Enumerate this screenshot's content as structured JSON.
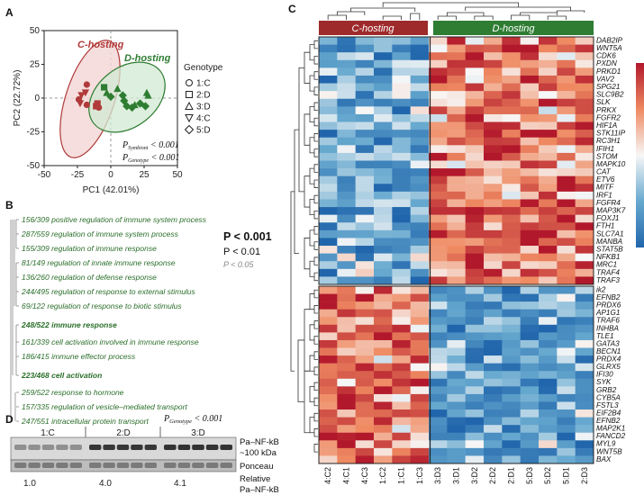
{
  "panel_labels": [
    "A",
    "B",
    "C",
    "D"
  ],
  "panelA": {
    "xlabel": "PC1 (42.01%)",
    "ylabel": "PC2 (22.72%)",
    "xticks": [
      -50,
      -25,
      0,
      25,
      50
    ],
    "yticks": [
      -50,
      -25,
      0,
      25,
      50
    ],
    "c_label": "C-hosting",
    "d_label": "D-hosting",
    "legend_title": "Genotype",
    "legend_items": [
      "1:C",
      "2:D",
      "3:D",
      "4:C",
      "5:D"
    ],
    "stat1": "P",
    "stat1_sub": "Symbiont",
    "stat1_val": " < 0.001",
    "stat2": "P",
    "stat2_sub": "Genotype",
    "stat2_val": " < 0.001",
    "colors": {
      "c": "#b03a3a",
      "d": "#2e7d32",
      "c_fill": "#f3d6d4",
      "d_fill": "#d2ead3"
    }
  },
  "chart_data": [
    {
      "type": "scatter",
      "title": "",
      "xlabel": "PC1 (42.01%)",
      "ylabel": "PC2 (22.72%)",
      "xlim": [
        -50,
        50
      ],
      "ylim": [
        -50,
        50
      ],
      "series": [
        {
          "name": "C-hosting",
          "points": [
            [
              -18,
              10
            ],
            [
              -19,
              4
            ],
            [
              -22,
              2
            ],
            [
              -24,
              -1
            ],
            [
              -23,
              -4
            ],
            [
              -18,
              -5
            ],
            [
              -11,
              -6
            ],
            [
              -10,
              -4
            ],
            [
              -9,
              -7
            ]
          ]
        },
        {
          "name": "D-hosting",
          "points": [
            [
              -5,
              8
            ],
            [
              -3,
              4
            ],
            [
              0,
              1
            ],
            [
              5,
              7
            ],
            [
              9,
              2
            ],
            [
              10,
              -2
            ],
            [
              12,
              -6
            ],
            [
              16,
              -7
            ],
            [
              18,
              -5
            ],
            [
              22,
              -4
            ],
            [
              26,
              -6
            ],
            [
              27,
              4
            ],
            [
              28,
              2
            ]
          ]
        }
      ]
    },
    {
      "type": "heatmap",
      "title": "",
      "columns": [
        "4:C2",
        "4:C1",
        "4:C3",
        "1:C2",
        "1:C1",
        "1:C3",
        "3:D3",
        "3:D1",
        "3:D2",
        "2:D2",
        "2:D1",
        "5:D3",
        "5:D2",
        "5:D1",
        "2:D3"
      ],
      "column_groups": [
        "C-hosting",
        "D-hosting"
      ],
      "rows_top": [
        "DAB2IP",
        "WNT5A",
        "CDK6",
        "PXDN",
        "PRKD1",
        "VAV2",
        "SPG21",
        "SLC9B2",
        "SLK",
        "PRKX",
        "FGFR2",
        "HIF1A",
        "STK11IP",
        "RC3H1",
        "IFIH1",
        "STOM",
        "MAPK10",
        "CAT",
        "ETV6",
        "MITF",
        "IRF1",
        "FGFR4",
        "MAP3K7",
        "FOXJ1",
        "FTH1",
        "SLC7A1",
        "MANBA",
        "STAT5B",
        "NFKB1",
        "MRC1",
        "TRAF4",
        "TRAF3"
      ],
      "rows_bottom": [
        "ik2",
        "EFNB2",
        "PRDX6",
        "AP1G1",
        "TRAF6",
        "INHBA",
        "TLE1",
        "GATA3",
        "BECN1",
        "PRDX4",
        "GLRX5",
        "IFI30",
        "SYK",
        "GRB2",
        "CYB5A",
        "FSTL3",
        "EIF2B4",
        "EFNB2",
        "MAP2K1",
        "FANCD2",
        "MYL9",
        "WNT5B",
        "BAX"
      ]
    },
    {
      "type": "bar",
      "title": "",
      "categories": [
        "1:C",
        "2:D",
        "3:D"
      ],
      "values": [
        1.0,
        4.0,
        4.1
      ],
      "ylabel": "Relative Pa–NF-kB"
    }
  ],
  "panelB": {
    "terms": [
      {
        "text": "156/309 positive regulation of immune system process",
        "big": false
      },
      {
        "text": "287/559 regulation of immune system process",
        "big": false
      },
      {
        "text": "155/309 regulation of immune response",
        "big": false
      },
      {
        "text": "81/149 regulation of innate immune response",
        "big": false
      },
      {
        "text": "136/260 regulation of defense response",
        "big": false
      },
      {
        "text": "244/495 regulation of response to external stimulus",
        "big": false
      },
      {
        "text": "69/122 regulation of response to biotic stimulus",
        "big": false
      },
      {
        "text": "248/522 immune response",
        "big": true
      },
      {
        "text": "161/339 cell activation involved in immune response",
        "big": false
      },
      {
        "text": "186/415 immune effector process",
        "big": false
      },
      {
        "text": "223/468 cell activation",
        "big": true
      },
      {
        "text": "259/522 response to hormone",
        "big": false
      },
      {
        "text": "157/335 regulation of vesicle–mediated transport",
        "big": false
      },
      {
        "text": "247/551 intracellular protein transport",
        "big": false
      }
    ],
    "p1": "P < 0.001",
    "p2": "P < 0.01",
    "p3": "P < 0.05"
  },
  "panelC": {
    "c_header": "C-hosting",
    "d_header": "D-hosting",
    "header_colors": {
      "c": "#9e2a2b",
      "d": "#2e7d32"
    }
  },
  "panelD": {
    "p_label": "P",
    "p_sub": "Genotype",
    "p_val": " < 0.001",
    "lanes": [
      "1:C",
      "2:D",
      "3:D"
    ],
    "band1": "Pa–NF-kB",
    "band1b": "~100 kDa",
    "band2": "Ponceau",
    "rel_values": [
      "1.0",
      "4.0",
      "4.1"
    ],
    "rel_label1": "Relative",
    "rel_label2": "Pa–NF-kB"
  }
}
